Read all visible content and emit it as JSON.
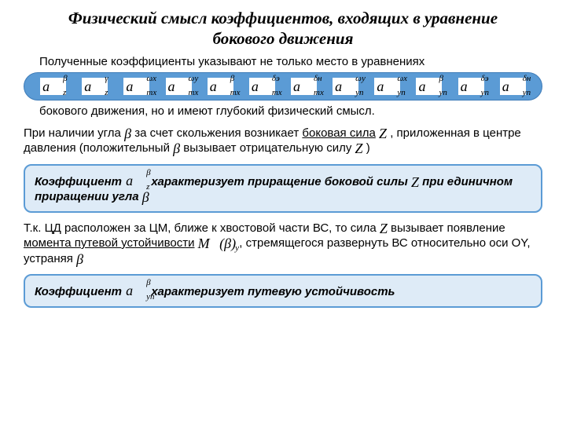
{
  "title_line1": "Физический смысл коэффициентов, входящих в уравнение",
  "title_line2": "бокового движения",
  "para1": "Полученные коэффициенты указывают не только место в уравнениях",
  "coeffs": [
    {
      "sub": "z",
      "sup": "β"
    },
    {
      "sub": "z",
      "sup": "γ"
    },
    {
      "sub": "mx",
      "sup": "ωx"
    },
    {
      "sub": "mx",
      "sup": "ωy"
    },
    {
      "sub": "mx",
      "sup": "β"
    },
    {
      "sub": "mx",
      "sup": "δэ"
    },
    {
      "sub": "mx",
      "sup": "δн"
    },
    {
      "sub": "yn",
      "sup": "ωy"
    },
    {
      "sub": "yn",
      "sup": "ωx"
    },
    {
      "sub": "yn",
      "sup": "β"
    },
    {
      "sub": "yn",
      "sup": "δэ"
    },
    {
      "sub": "yn",
      "sup": "δн"
    }
  ],
  "para2": "бокового движения, но и имеют глубокий физический смысл.",
  "para3_pre": "При наличии угла ",
  "para3_mid1": " за счет скольжения возникает ",
  "para3_underline": "боковая сила",
  "para3_mid2": " ",
  "para3_line2a": ", приложенная в центре давления (положительный ",
  "para3_line2b": " вызывает отрицательную силу ",
  "para3_end": " )",
  "callout1_pre": "Коэффициент ",
  "callout1_mid": " характеризует приращение боковой силы ",
  "callout1_mid2": " при единичном приращении угла ",
  "para4_a": "Т.к. ЦД расположен за ЦМ, ближе к хвостовой части ВС, то сила ",
  "para4_b": " вызывает появление ",
  "para4_under": "момента путевой устойчивости",
  "para4_c": " ",
  "para4_d": ", стремящегося развернуть ВС относительно оси OY, устраняя ",
  "callout2_pre": "Коэффициент ",
  "callout2_post": " характеризует путевую устойчивость",
  "sym_beta": "β",
  "sym_Z": "Z",
  "sym_My": "M",
  "sym_My_sub": "y",
  "sym_My_arg": "(β)",
  "colors": {
    "accent": "#5b9bd5",
    "box_fill": "#deebf7",
    "text": "#000000"
  }
}
